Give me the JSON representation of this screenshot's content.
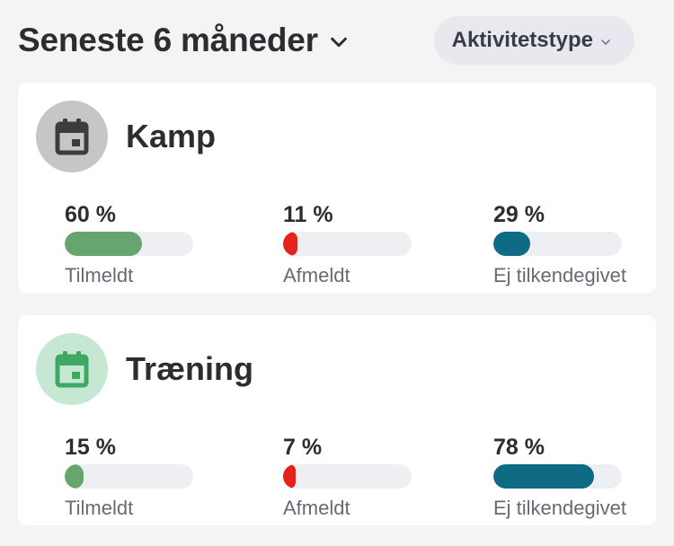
{
  "header": {
    "period_title": "Seneste 6 måneder",
    "type_filter_label": "Aktivitetstype"
  },
  "colors": {
    "tilmeldt": "#67a56f",
    "afmeldt": "#e4231c",
    "ej": "#0f6b84",
    "kamp_avatar_bg": "#c6c6c6",
    "kamp_icon": "#3c3c3c",
    "traening_avatar_bg": "#c6e8d2",
    "traening_icon": "#3fa862"
  },
  "activities": [
    {
      "title": "Kamp",
      "icon": "calendar-icon",
      "stats": [
        {
          "percent_text": "60 %",
          "value": 0.6,
          "label": "Tilmeldt"
        },
        {
          "percent_text": "11 %",
          "value": 0.11,
          "label": "Afmeldt"
        },
        {
          "percent_text": "29 %",
          "value": 0.29,
          "label": "Ej tilkendegivet"
        }
      ]
    },
    {
      "title": "Træning",
      "icon": "calendar-icon",
      "stats": [
        {
          "percent_text": "15 %",
          "value": 0.15,
          "label": "Tilmeldt"
        },
        {
          "percent_text": "7 %",
          "value": 0.07,
          "label": "Afmeldt"
        },
        {
          "percent_text": "78 %",
          "value": 0.78,
          "label": "Ej tilkendegivet"
        }
      ]
    }
  ]
}
